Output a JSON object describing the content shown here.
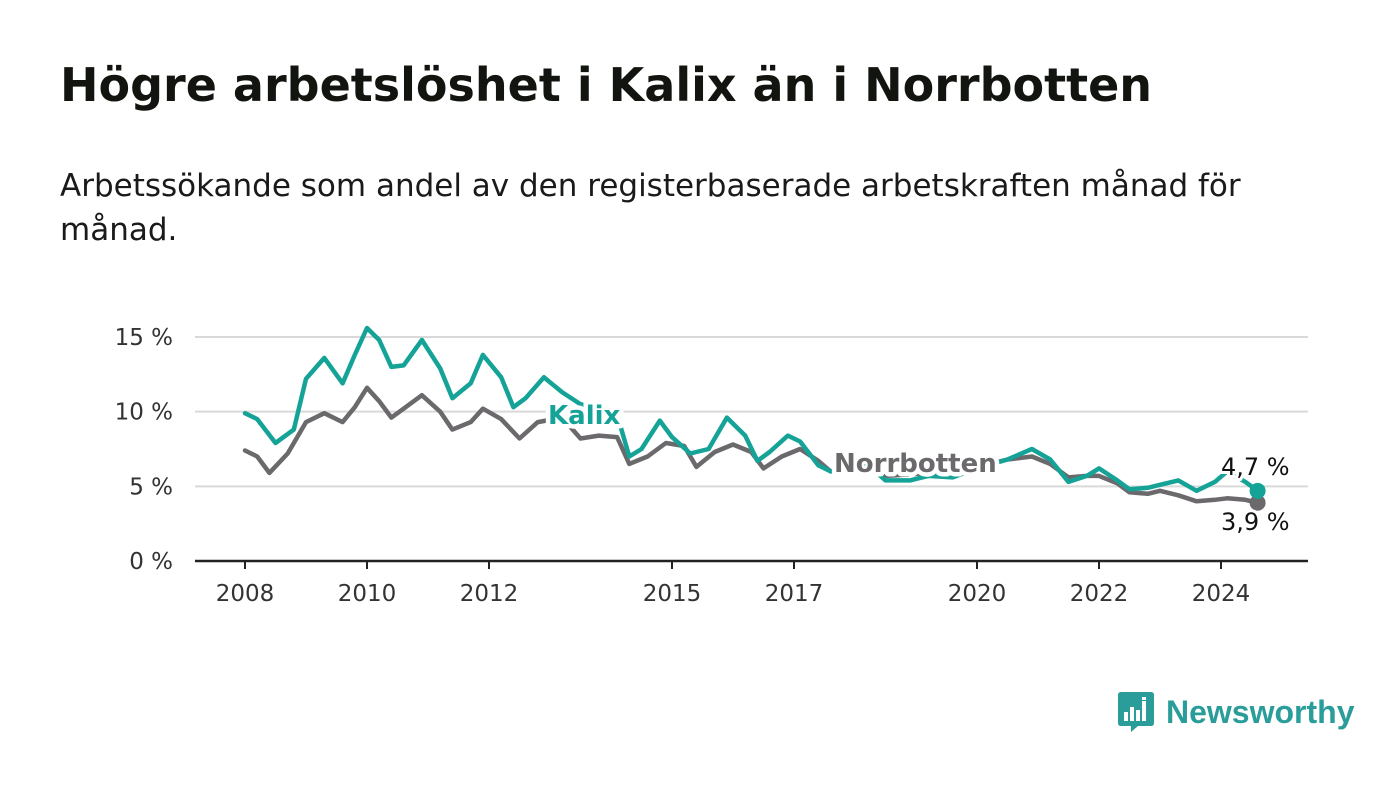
{
  "title": "Högre arbetslöshet i Kalix än i Norrbotten",
  "subtitle": "Arbetssökande som andel av den registerbaserade arbetskraften månad för månad.",
  "logo": {
    "text": "Newsworthy",
    "icon": "bar-chart-speech-icon"
  },
  "colors": {
    "kalix": "#15a398",
    "norrbotten": "#6b696c",
    "grid": "#d9d9d9",
    "axis": "#222222"
  },
  "chart_data": {
    "type": "line",
    "x_ticks": [
      2008,
      2010,
      2012,
      2015,
      2017,
      2020,
      2022,
      2024
    ],
    "y_ticks": [
      0,
      5,
      10,
      15
    ],
    "y_tick_labels": [
      "0 %",
      "5 %",
      "10 %",
      "15 %"
    ],
    "ylim": [
      0,
      15
    ],
    "xlim": [
      2007.2,
      2025.5
    ],
    "grid": "horizontal",
    "series": [
      {
        "name": "Kalix",
        "color": "#15a398",
        "end_label": "4,7 %",
        "points": [
          [
            2008.0,
            9.9
          ],
          [
            2008.2,
            9.5
          ],
          [
            2008.5,
            7.9
          ],
          [
            2008.8,
            8.8
          ],
          [
            2009.0,
            12.2
          ],
          [
            2009.3,
            13.6
          ],
          [
            2009.6,
            11.9
          ],
          [
            2009.8,
            13.8
          ],
          [
            2010.0,
            15.6
          ],
          [
            2010.2,
            14.8
          ],
          [
            2010.4,
            13.0
          ],
          [
            2010.6,
            13.1
          ],
          [
            2010.9,
            14.8
          ],
          [
            2011.2,
            12.9
          ],
          [
            2011.4,
            10.9
          ],
          [
            2011.7,
            11.9
          ],
          [
            2011.9,
            13.8
          ],
          [
            2012.2,
            12.3
          ],
          [
            2012.4,
            10.3
          ],
          [
            2012.6,
            10.9
          ],
          [
            2012.9,
            12.3
          ],
          [
            2013.2,
            11.3
          ],
          [
            2013.5,
            10.5
          ],
          [
            2013.8,
            10.1
          ],
          [
            2014.1,
            9.8
          ],
          [
            2014.3,
            7.0
          ],
          [
            2014.5,
            7.5
          ],
          [
            2014.8,
            9.4
          ],
          [
            2015.0,
            8.3
          ],
          [
            2015.3,
            7.2
          ],
          [
            2015.6,
            7.5
          ],
          [
            2015.9,
            9.6
          ],
          [
            2016.2,
            8.4
          ],
          [
            2016.4,
            6.7
          ],
          [
            2016.6,
            7.3
          ],
          [
            2016.9,
            8.4
          ],
          [
            2017.1,
            8.0
          ],
          [
            2017.4,
            6.4
          ],
          [
            2017.6,
            6.0
          ],
          [
            2017.9,
            6.3
          ],
          [
            2018.2,
            6.5
          ],
          [
            2018.5,
            5.4
          ],
          [
            2018.9,
            5.4
          ],
          [
            2019.2,
            5.7
          ],
          [
            2019.6,
            5.6
          ],
          [
            2020.0,
            6.2
          ],
          [
            2020.5,
            6.8
          ],
          [
            2020.9,
            7.5
          ],
          [
            2021.2,
            6.8
          ],
          [
            2021.5,
            5.3
          ],
          [
            2021.8,
            5.7
          ],
          [
            2022.0,
            6.2
          ],
          [
            2022.3,
            5.4
          ],
          [
            2022.5,
            4.8
          ],
          [
            2022.8,
            4.9
          ],
          [
            2023.0,
            5.1
          ],
          [
            2023.3,
            5.4
          ],
          [
            2023.6,
            4.7
          ],
          [
            2023.9,
            5.3
          ],
          [
            2024.1,
            6.0
          ],
          [
            2024.4,
            5.3
          ],
          [
            2024.6,
            4.7
          ]
        ]
      },
      {
        "name": "Norrbotten",
        "color": "#6b696c",
        "end_label": "3,9 %",
        "points": [
          [
            2008.0,
            7.4
          ],
          [
            2008.2,
            7.0
          ],
          [
            2008.4,
            5.9
          ],
          [
            2008.7,
            7.2
          ],
          [
            2009.0,
            9.3
          ],
          [
            2009.3,
            9.9
          ],
          [
            2009.6,
            9.3
          ],
          [
            2009.8,
            10.3
          ],
          [
            2010.0,
            11.6
          ],
          [
            2010.2,
            10.7
          ],
          [
            2010.4,
            9.6
          ],
          [
            2010.6,
            10.2
          ],
          [
            2010.9,
            11.1
          ],
          [
            2011.2,
            10.0
          ],
          [
            2011.4,
            8.8
          ],
          [
            2011.7,
            9.3
          ],
          [
            2011.9,
            10.2
          ],
          [
            2012.2,
            9.5
          ],
          [
            2012.5,
            8.2
          ],
          [
            2012.8,
            9.3
          ],
          [
            2013.2,
            9.6
          ],
          [
            2013.5,
            8.2
          ],
          [
            2013.8,
            8.4
          ],
          [
            2014.1,
            8.3
          ],
          [
            2014.3,
            6.5
          ],
          [
            2014.6,
            7.0
          ],
          [
            2014.9,
            7.9
          ],
          [
            2015.2,
            7.7
          ],
          [
            2015.4,
            6.3
          ],
          [
            2015.7,
            7.3
          ],
          [
            2016.0,
            7.8
          ],
          [
            2016.3,
            7.3
          ],
          [
            2016.5,
            6.2
          ],
          [
            2016.8,
            7.0
          ],
          [
            2017.1,
            7.5
          ],
          [
            2017.4,
            6.7
          ],
          [
            2017.6,
            6.0
          ],
          [
            2017.9,
            6.2
          ],
          [
            2018.2,
            6.3
          ],
          [
            2018.5,
            5.7
          ],
          [
            2018.9,
            5.8
          ],
          [
            2019.2,
            5.9
          ],
          [
            2019.6,
            5.8
          ],
          [
            2020.0,
            6.3
          ],
          [
            2020.5,
            6.8
          ],
          [
            2020.9,
            7.0
          ],
          [
            2021.2,
            6.5
          ],
          [
            2021.5,
            5.6
          ],
          [
            2021.8,
            5.7
          ],
          [
            2022.0,
            5.7
          ],
          [
            2022.3,
            5.2
          ],
          [
            2022.5,
            4.6
          ],
          [
            2022.8,
            4.5
          ],
          [
            2023.0,
            4.7
          ],
          [
            2023.3,
            4.4
          ],
          [
            2023.6,
            4.0
          ],
          [
            2023.9,
            4.1
          ],
          [
            2024.1,
            4.2
          ],
          [
            2024.4,
            4.1
          ],
          [
            2024.6,
            3.9
          ]
        ]
      }
    ]
  }
}
